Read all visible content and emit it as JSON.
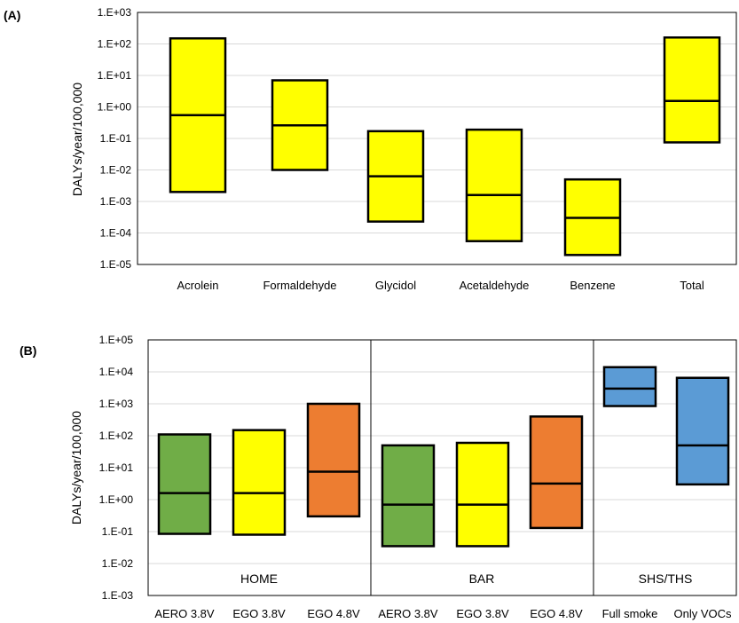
{
  "chart_data": [
    {
      "type": "box",
      "panel_label": "(A)",
      "ylabel": "DALYs/year/100,000",
      "yscale": "log",
      "ylim": [
        1e-05,
        1000
      ],
      "ytick_labels": [
        "1.E-05",
        "1.E-04",
        "1.E-03",
        "1.E-02",
        "1.E-01",
        "1.E+00",
        "1.E+01",
        "1.E+02",
        "1.E+03"
      ],
      "grid": true,
      "categories": [
        "Acrolein",
        "Formaldehyde",
        "Glycidol",
        "Acetaldehyde",
        "Benzene",
        "Total"
      ],
      "low": [
        0.002,
        0.01,
        0.00023,
        5.5e-05,
        2e-05,
        0.075
      ],
      "median": [
        0.55,
        0.26,
        0.0063,
        0.0016,
        0.0003,
        1.55
      ],
      "high": [
        150,
        7.0,
        0.17,
        0.19,
        0.005,
        160
      ],
      "colors": [
        "#FFFF00",
        "#FFFF00",
        "#FFFF00",
        "#FFFF00",
        "#FFFF00",
        "#FFFF00"
      ]
    },
    {
      "type": "box",
      "panel_label": "(B)",
      "ylabel": "DALYs/year/100,000",
      "yscale": "log",
      "ylim": [
        0.001,
        100000
      ],
      "ytick_labels": [
        "1.E-03",
        "1.E-02",
        "1.E-01",
        "1.E+00",
        "1.E+01",
        "1.E+02",
        "1.E+03",
        "1.E+04",
        "1.E+05"
      ],
      "grid": true,
      "groups": [
        {
          "label": "HOME",
          "count": 3
        },
        {
          "label": "BAR",
          "count": 3
        },
        {
          "label": "SHS/THS",
          "count": 2
        }
      ],
      "categories": [
        "AERO 3.8V",
        "EGO 3.8V",
        "EGO 4.8V",
        "AERO 3.8V",
        "EGO 3.8V",
        "EGO 4.8V",
        "Full smoke",
        "Only VOCs"
      ],
      "low": [
        0.085,
        0.08,
        0.3,
        0.035,
        0.035,
        0.13,
        850,
        3.0
      ],
      "median": [
        1.6,
        1.6,
        7.5,
        0.7,
        0.7,
        3.2,
        3000,
        50
      ],
      "high": [
        110,
        150,
        1000,
        50,
        60,
        400,
        14000,
        6500
      ],
      "colors": [
        "#70AD47",
        "#FFFF00",
        "#ED7D31",
        "#70AD47",
        "#FFFF00",
        "#ED7D31",
        "#5B9BD5",
        "#5B9BD5"
      ]
    }
  ]
}
